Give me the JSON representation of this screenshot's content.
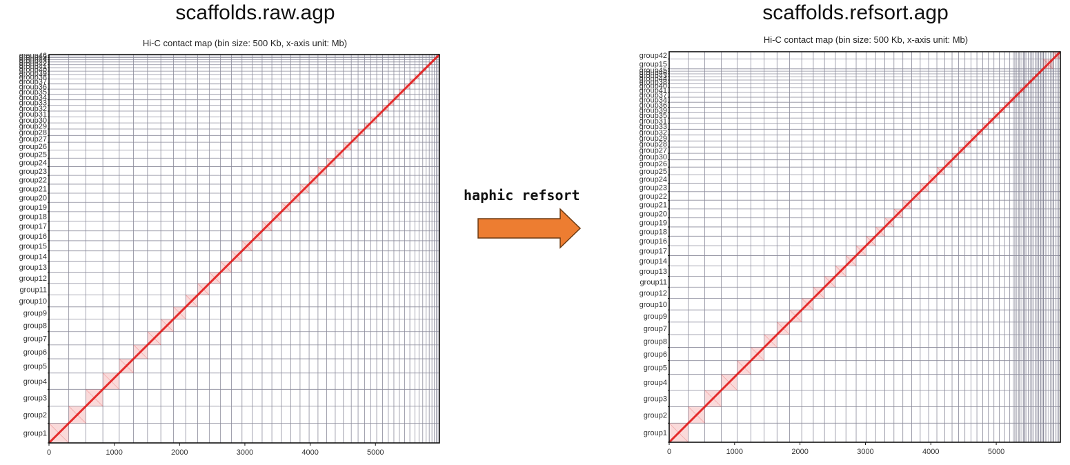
{
  "left": {
    "title": "scaffolds.raw.agp",
    "subtitle": "Hi-C contact map (bin size: 500 Kb, x-axis unit: Mb)",
    "x_ticks": [
      0,
      1000,
      2000,
      3000,
      4000,
      5000
    ],
    "x_max": 5980,
    "groups": [
      {
        "name": "group1",
        "size": 290
      },
      {
        "name": "group2",
        "size": 250
      },
      {
        "name": "group3",
        "size": 250
      },
      {
        "name": "group4",
        "size": 240
      },
      {
        "name": "group5",
        "size": 210
      },
      {
        "name": "group6",
        "size": 205
      },
      {
        "name": "group7",
        "size": 195
      },
      {
        "name": "group8",
        "size": 185
      },
      {
        "name": "group9",
        "size": 180
      },
      {
        "name": "group10",
        "size": 175
      },
      {
        "name": "group11",
        "size": 170
      },
      {
        "name": "group12",
        "size": 165
      },
      {
        "name": "group13",
        "size": 160
      },
      {
        "name": "group14",
        "size": 155
      },
      {
        "name": "group15",
        "size": 150
      },
      {
        "name": "group16",
        "size": 145
      },
      {
        "name": "group17",
        "size": 143
      },
      {
        "name": "group18",
        "size": 140
      },
      {
        "name": "group19",
        "size": 138
      },
      {
        "name": "group20",
        "size": 135
      },
      {
        "name": "group21",
        "size": 133
      },
      {
        "name": "group22",
        "size": 130
      },
      {
        "name": "group23",
        "size": 128
      },
      {
        "name": "group24",
        "size": 125
      },
      {
        "name": "group25",
        "size": 120
      },
      {
        "name": "group26",
        "size": 115
      },
      {
        "name": "group27",
        "size": 100
      },
      {
        "name": "group28",
        "size": 95
      },
      {
        "name": "group29",
        "size": 90
      },
      {
        "name": "group30",
        "size": 88
      },
      {
        "name": "group31",
        "size": 86
      },
      {
        "name": "group32",
        "size": 84
      },
      {
        "name": "group33",
        "size": 82
      },
      {
        "name": "group34",
        "size": 80
      },
      {
        "name": "group35",
        "size": 78
      },
      {
        "name": "group36",
        "size": 76
      },
      {
        "name": "group37",
        "size": 74
      },
      {
        "name": "group38",
        "size": 60
      },
      {
        "name": "group39",
        "size": 55
      },
      {
        "name": "group40",
        "size": 50
      },
      {
        "name": "group41",
        "size": 45
      },
      {
        "name": "group42",
        "size": 40
      },
      {
        "name": "group43",
        "size": 35
      },
      {
        "name": "group44",
        "size": 30
      },
      {
        "name": "group45",
        "size": 25
      },
      {
        "name": "group46",
        "size": 20
      }
    ]
  },
  "right": {
    "title": "scaffolds.refsort.agp",
    "subtitle": "Hi-C contact map (bin size: 500 Kb, x-axis unit: Mb)",
    "x_ticks": [
      0,
      1000,
      2000,
      3000,
      4000,
      5000
    ],
    "x_max": 5980,
    "groups": [
      {
        "name": "group1",
        "size": 290
      },
      {
        "name": "group2",
        "size": 250
      },
      {
        "name": "group3",
        "size": 250
      },
      {
        "name": "group4",
        "size": 240
      },
      {
        "name": "group5",
        "size": 210
      },
      {
        "name": "group6",
        "size": 200
      },
      {
        "name": "group8",
        "size": 195
      },
      {
        "name": "group7",
        "size": 190
      },
      {
        "name": "group9",
        "size": 185
      },
      {
        "name": "group10",
        "size": 175
      },
      {
        "name": "group12",
        "size": 170
      },
      {
        "name": "group11",
        "size": 165
      },
      {
        "name": "group13",
        "size": 160
      },
      {
        "name": "group14",
        "size": 155
      },
      {
        "name": "group17",
        "size": 150
      },
      {
        "name": "group16",
        "size": 145
      },
      {
        "name": "group18",
        "size": 140
      },
      {
        "name": "group19",
        "size": 138
      },
      {
        "name": "group20",
        "size": 135
      },
      {
        "name": "group21",
        "size": 133
      },
      {
        "name": "group22",
        "size": 130
      },
      {
        "name": "group23",
        "size": 128
      },
      {
        "name": "group24",
        "size": 125
      },
      {
        "name": "group25",
        "size": 120
      },
      {
        "name": "group26",
        "size": 110
      },
      {
        "name": "group30",
        "size": 100
      },
      {
        "name": "group27",
        "size": 95
      },
      {
        "name": "group28",
        "size": 92
      },
      {
        "name": "group29",
        "size": 90
      },
      {
        "name": "group32",
        "size": 88
      },
      {
        "name": "group33",
        "size": 86
      },
      {
        "name": "group31",
        "size": 84
      },
      {
        "name": "group35",
        "size": 82
      },
      {
        "name": "group39",
        "size": 80
      },
      {
        "name": "group36",
        "size": 78
      },
      {
        "name": "group34",
        "size": 76
      },
      {
        "name": "group37",
        "size": 74
      },
      {
        "name": "group41",
        "size": 72
      },
      {
        "name": "group40",
        "size": 60
      },
      {
        "name": "group38",
        "size": 55
      },
      {
        "name": "group44",
        "size": 50
      },
      {
        "name": "group43",
        "size": 45
      },
      {
        "name": "group46",
        "size": 40
      },
      {
        "name": "group45",
        "size": 35
      },
      {
        "name": "group15",
        "size": 150
      },
      {
        "name": "group42",
        "size": 110
      }
    ],
    "extra_lines": 28
  },
  "command": {
    "label": "haphic refsort"
  },
  "colors": {
    "grid": "#8a8a9a",
    "contact": "#e21a1a",
    "arrow": "#ed7d31",
    "arrow_stroke": "#6b3a12"
  }
}
